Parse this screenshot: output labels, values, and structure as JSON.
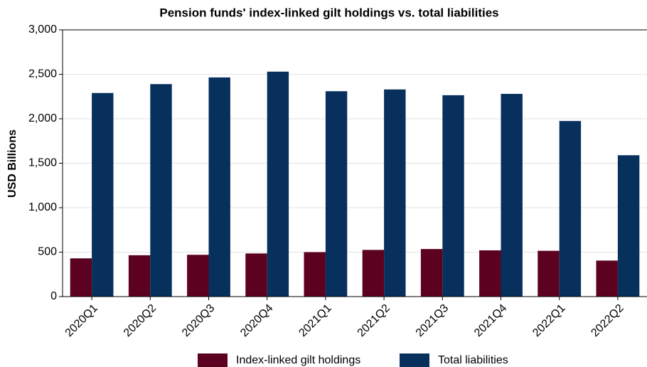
{
  "chart_data": {
    "type": "bar",
    "title": "Pension funds' index-linked gilt holdings vs. total liabilities",
    "y_label": "USD Billions",
    "categories": [
      "2020Q1",
      "2020Q2",
      "2020Q3",
      "2020Q4",
      "2021Q1",
      "2021Q2",
      "2021Q3",
      "2021Q4",
      "2022Q1",
      "2022Q2"
    ],
    "series": [
      {
        "name": "Index-linked gilt holdings",
        "color": "#5c0120",
        "values": [
          430,
          465,
          470,
          485,
          500,
          525,
          535,
          520,
          515,
          405
        ]
      },
      {
        "name": "Total liabilities",
        "color": "#07305c",
        "values": [
          2290,
          2390,
          2465,
          2530,
          2310,
          2330,
          2265,
          2280,
          1975,
          1590
        ]
      }
    ],
    "ylim": [
      0,
      3000
    ],
    "yticks": [
      0,
      500,
      {
        "value": 1000,
        "label": "1,000"
      },
      {
        "value": 1500,
        "label": "1,500"
      },
      {
        "value": 2000,
        "label": "2,000"
      },
      {
        "value": 2500,
        "label": "2,500"
      },
      {
        "value": 3000,
        "label": "3,000"
      }
    ],
    "grid": true,
    "legend": "bottom"
  }
}
